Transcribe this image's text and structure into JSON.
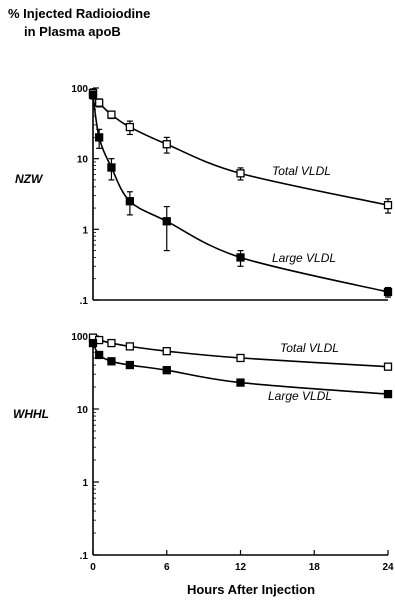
{
  "figure": {
    "ylabel_line1": "% Injected Radioiodine",
    "ylabel_line2": "in Plasma apoB",
    "xlabel": "Hours After Injection"
  },
  "chart_data": [
    {
      "type": "line",
      "panel": "NZW",
      "y_scale": "log",
      "ylim": [
        0.1,
        100
      ],
      "xlim": [
        0,
        24
      ],
      "y_tick_labels": [
        "100",
        "10",
        "1",
        ".1"
      ],
      "y_tick_values": [
        100,
        10,
        1,
        0.1
      ],
      "x_ticks": [],
      "series": [
        {
          "name": "Total VLDL",
          "marker": "open-square",
          "x": [
            0,
            0.5,
            1.5,
            3,
            6,
            12,
            24
          ],
          "y": [
            85,
            62,
            42,
            28,
            16,
            6.2,
            2.2
          ],
          "err": [
            12,
            8,
            5,
            6,
            4,
            1.2,
            0.5
          ]
        },
        {
          "name": "Large VLDL",
          "marker": "filled-square",
          "x": [
            0,
            0.5,
            1.5,
            3,
            6,
            12,
            24
          ],
          "y": [
            80,
            20,
            7.5,
            2.5,
            1.3,
            0.4,
            0.13
          ],
          "err": [
            10,
            6,
            2.5,
            0.9,
            0.8,
            0.1,
            0.02
          ]
        }
      ]
    },
    {
      "type": "line",
      "panel": "WHHL",
      "y_scale": "log",
      "ylim": [
        0.1,
        100
      ],
      "xlim": [
        0,
        24
      ],
      "y_tick_labels": [
        "100",
        "10",
        "1",
        ".1"
      ],
      "y_tick_values": [
        100,
        10,
        1,
        0.1
      ],
      "x_ticks": [
        0,
        6,
        12,
        18,
        24
      ],
      "x_tick_labels": [
        "0",
        "6",
        "12",
        "18",
        "24"
      ],
      "series": [
        {
          "name": "Total VLDL",
          "marker": "open-square",
          "x": [
            0,
            0.5,
            1.5,
            3,
            6,
            12,
            24
          ],
          "y": [
            95,
            88,
            80,
            72,
            62,
            50,
            38
          ],
          "err": [
            5,
            0,
            0,
            0,
            0,
            0,
            0
          ]
        },
        {
          "name": "Large VLDL",
          "marker": "filled-square",
          "x": [
            0,
            0.5,
            1.5,
            3,
            6,
            12,
            24
          ],
          "y": [
            80,
            55,
            45,
            40,
            34,
            23,
            16
          ],
          "err": [
            6,
            0,
            0,
            0,
            0,
            0,
            0
          ]
        }
      ]
    }
  ]
}
